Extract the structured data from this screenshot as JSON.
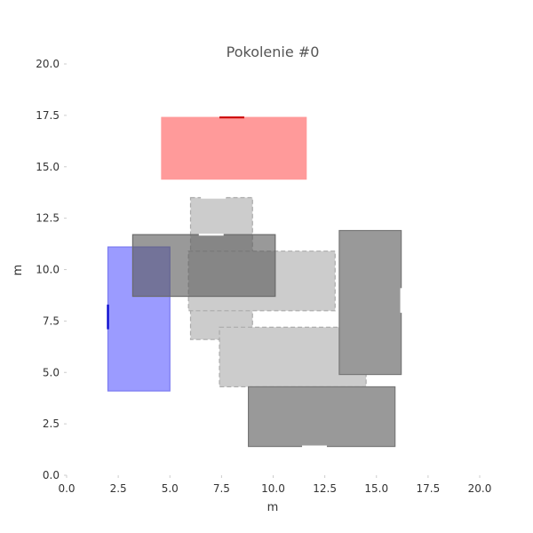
{
  "chart_data": {
    "type": "rectangles",
    "title": "Pokolenie #0",
    "xlabel": "m",
    "ylabel": "m",
    "xlim": [
      0,
      20
    ],
    "ylim": [
      0,
      20
    ],
    "x_ticks": [
      "0.0",
      "2.5",
      "5.0",
      "7.5",
      "10.0",
      "12.5",
      "15.0",
      "17.5",
      "20.0"
    ],
    "y_ticks": [
      "0.0",
      "2.5",
      "5.0",
      "7.5",
      "10.0",
      "12.5",
      "15.0",
      "17.5",
      "20.0"
    ],
    "grid": false,
    "rects": [
      {
        "x0": 4.6,
        "y0": 14.4,
        "x1": 11.6,
        "y1": 17.4,
        "fill": "#ff9a9a",
        "stroke": "#ff9a9a",
        "dashed": false,
        "door_side": "top",
        "door_pos": 8.0,
        "door_color": "#cc0000"
      },
      {
        "x0": 2.0,
        "y0": 4.1,
        "x1": 5.0,
        "y1": 11.1,
        "fill": "#9b9bff",
        "stroke": "#7a7af0",
        "dashed": false,
        "door_side": "left",
        "door_pos": 7.7,
        "door_color": "#0000cc"
      },
      {
        "x0": 6.0,
        "y0": 6.6,
        "x1": 9.0,
        "y1": 13.5,
        "fill": "#cccccc",
        "stroke": "#aaaaaa",
        "dashed": true,
        "door_side": "top",
        "door_pos": 7.1,
        "door_color": "#ffffff"
      },
      {
        "x0": 5.9,
        "y0": 8.0,
        "x1": 13.0,
        "y1": 10.9,
        "fill": "#cccccc",
        "stroke": "#aaaaaa",
        "dashed": true,
        "door_side": "none",
        "door_pos": 0,
        "door_color": "#ffffff"
      },
      {
        "x0": 7.4,
        "y0": 4.3,
        "x1": 14.5,
        "y1": 7.2,
        "fill": "#cccccc",
        "stroke": "#aaaaaa",
        "dashed": true,
        "door_side": "none",
        "door_pos": 0,
        "door_color": "#ffffff"
      },
      {
        "x0": 3.2,
        "y0": 8.7,
        "x1": 10.1,
        "y1": 11.7,
        "fill": "rgba(90,90,90,0.62)",
        "stroke": "#6a6a6a",
        "dashed": false,
        "door_side": "top",
        "door_pos": 7.0,
        "door_color": "#ffffff"
      },
      {
        "x0": 13.2,
        "y0": 4.9,
        "x1": 16.2,
        "y1": 11.9,
        "fill": "#999999",
        "stroke": "#777777",
        "dashed": false,
        "door_side": "right",
        "door_pos": 8.5,
        "door_color": "#ffffff"
      },
      {
        "x0": 8.8,
        "y0": 1.4,
        "x1": 15.9,
        "y1": 4.3,
        "fill": "#999999",
        "stroke": "#777777",
        "dashed": false,
        "door_side": "bottom",
        "door_pos": 12.0,
        "door_color": "#ffffff"
      }
    ]
  }
}
